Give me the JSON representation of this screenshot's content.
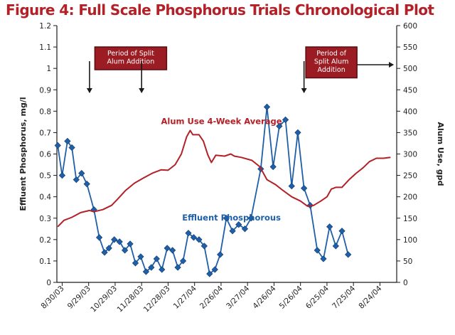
{
  "chart_data": {
    "type": "line",
    "title": "Figure 4: Full Scale Phosphorus Trials Chronological Plot",
    "ylabel_left": "Effluent Phosphorus, mg/l",
    "ylabel_right": "Alum Use, gpd",
    "ylim_left": [
      0,
      1.2
    ],
    "ylim_right": [
      0,
      600
    ],
    "xlim": [
      "2003-08-24",
      "2004-09-12"
    ],
    "x_ticks": [
      "8/30/03",
      "9/29/03",
      "10/29/03",
      "11/28/03",
      "12/28/03",
      "1/27/04",
      "2/26/04",
      "3/27/04",
      "4/26/04",
      "5/26/04",
      "6/25/04",
      "7/25/04",
      "8/24/04"
    ],
    "x_tick_dates": [
      "2003-08-30",
      "2003-09-29",
      "2003-10-29",
      "2003-11-28",
      "2003-12-28",
      "2004-01-27",
      "2004-02-26",
      "2004-03-27",
      "2004-04-26",
      "2004-05-26",
      "2004-06-25",
      "2004-07-25",
      "2004-08-24"
    ],
    "y_ticks_left": [
      "0",
      "0.1",
      "0.2",
      "0.3",
      "0.4",
      "0.5",
      "0.6",
      "0.7",
      "0.8",
      "0.9",
      "1",
      "1.1",
      "1.2"
    ],
    "y_ticks_right": [
      "0",
      "50",
      "100",
      "150",
      "200",
      "250",
      "300",
      "350",
      "400",
      "450",
      "500",
      "550",
      "600"
    ],
    "series": [
      {
        "name": "Effluent Phosphorous",
        "axis": "left",
        "color": "#1f5fa8",
        "marker": "diamond",
        "points": [
          [
            "2003-08-25",
            0.64
          ],
          [
            "2003-08-30",
            0.5
          ],
          [
            "2003-09-05",
            0.66
          ],
          [
            "2003-09-10",
            0.63
          ],
          [
            "2003-09-15",
            0.48
          ],
          [
            "2003-09-21",
            0.51
          ],
          [
            "2003-09-27",
            0.46
          ],
          [
            "2003-10-05",
            0.34
          ],
          [
            "2003-10-11",
            0.21
          ],
          [
            "2003-10-17",
            0.14
          ],
          [
            "2003-10-22",
            0.16
          ],
          [
            "2003-10-28",
            0.2
          ],
          [
            "2003-11-03",
            0.19
          ],
          [
            "2003-11-09",
            0.15
          ],
          [
            "2003-11-15",
            0.18
          ],
          [
            "2003-11-21",
            0.09
          ],
          [
            "2003-11-27",
            0.12
          ],
          [
            "2003-12-03",
            0.05
          ],
          [
            "2003-12-09",
            0.07
          ],
          [
            "2003-12-15",
            0.11
          ],
          [
            "2003-12-21",
            0.06
          ],
          [
            "2003-12-27",
            0.16
          ],
          [
            "2004-01-02",
            0.15
          ],
          [
            "2004-01-08",
            0.07
          ],
          [
            "2004-01-14",
            0.1
          ],
          [
            "2004-01-20",
            0.23
          ],
          [
            "2004-01-26",
            0.21
          ],
          [
            "2004-02-01",
            0.2
          ],
          [
            "2004-02-07",
            0.17
          ],
          [
            "2004-02-13",
            0.04
          ],
          [
            "2004-02-19",
            0.06
          ],
          [
            "2004-02-25",
            0.13
          ],
          [
            "2004-03-03",
            0.3
          ],
          [
            "2004-03-10",
            0.24
          ],
          [
            "2004-03-17",
            0.27
          ],
          [
            "2004-03-24",
            0.25
          ],
          [
            "2004-03-31",
            0.3
          ],
          [
            "2004-04-11",
            0.53
          ],
          [
            "2004-04-18",
            0.82
          ],
          [
            "2004-04-25",
            0.54
          ],
          [
            "2004-05-02",
            0.73
          ],
          [
            "2004-05-09",
            0.76
          ],
          [
            "2004-05-16",
            0.45
          ],
          [
            "2004-05-23",
            0.7
          ],
          [
            "2004-05-30",
            0.44
          ],
          [
            "2004-06-06",
            0.36
          ],
          [
            "2004-06-14",
            0.15
          ],
          [
            "2004-06-21",
            0.11
          ],
          [
            "2004-06-28",
            0.26
          ],
          [
            "2004-07-05",
            0.17
          ],
          [
            "2004-07-12",
            0.24
          ],
          [
            "2004-07-19",
            0.13
          ]
        ]
      },
      {
        "name": "Alum Use 4-Week Average",
        "axis": "right",
        "color": "#b22127",
        "points": [
          [
            "2003-08-25",
            130
          ],
          [
            "2003-09-01",
            145
          ],
          [
            "2003-09-10",
            152
          ],
          [
            "2003-09-20",
            163
          ],
          [
            "2003-09-30",
            168
          ],
          [
            "2003-10-05",
            165
          ],
          [
            "2003-10-15",
            170
          ],
          [
            "2003-10-25",
            180
          ],
          [
            "2003-11-01",
            195
          ],
          [
            "2003-11-10",
            215
          ],
          [
            "2003-11-20",
            232
          ],
          [
            "2003-12-01",
            245
          ],
          [
            "2003-12-10",
            255
          ],
          [
            "2003-12-20",
            263
          ],
          [
            "2003-12-28",
            262
          ],
          [
            "2004-01-05",
            275
          ],
          [
            "2004-01-12",
            300
          ],
          [
            "2004-01-18",
            340
          ],
          [
            "2004-01-22",
            355
          ],
          [
            "2004-01-25",
            345
          ],
          [
            "2004-02-01",
            345
          ],
          [
            "2004-02-06",
            330
          ],
          [
            "2004-02-11",
            298
          ],
          [
            "2004-02-15",
            280
          ],
          [
            "2004-02-20",
            297
          ],
          [
            "2004-03-01",
            295
          ],
          [
            "2004-03-08",
            300
          ],
          [
            "2004-03-12",
            295
          ],
          [
            "2004-03-20",
            292
          ],
          [
            "2004-04-01",
            285
          ],
          [
            "2004-04-10",
            270
          ],
          [
            "2004-04-18",
            240
          ],
          [
            "2004-04-28",
            228
          ],
          [
            "2004-05-06",
            215
          ],
          [
            "2004-05-16",
            200
          ],
          [
            "2004-05-26",
            190
          ],
          [
            "2004-06-03",
            178
          ],
          [
            "2004-06-10",
            180
          ],
          [
            "2004-06-18",
            190
          ],
          [
            "2004-06-25",
            200
          ],
          [
            "2004-06-30",
            218
          ],
          [
            "2004-07-05",
            222
          ],
          [
            "2004-07-12",
            222
          ],
          [
            "2004-07-20",
            240
          ],
          [
            "2004-07-28",
            255
          ],
          [
            "2004-08-05",
            268
          ],
          [
            "2004-08-12",
            282
          ],
          [
            "2004-08-20",
            290
          ],
          [
            "2004-08-28",
            290
          ],
          [
            "2004-09-05",
            292
          ]
        ]
      }
    ],
    "series_labels": [
      {
        "text": "Alum Use 4-Week Average",
        "color": "#b22127",
        "anchor_date": "2003-12-20",
        "anchor_right": 370
      },
      {
        "text": "Effluent Phosphorous",
        "color": "#1f5fa8",
        "anchor_date": "2004-01-13",
        "anchor_left": 0.29
      }
    ],
    "annotations": [
      {
        "lines": [
          "Period of Split",
          "Alum Addition"
        ],
        "box_date": "2003-10-06",
        "arrows": [
          {
            "from_date": "2003-09-30",
            "to_date": "2003-09-30",
            "direction": "down"
          },
          {
            "from_date": "2003-11-28",
            "to_date": "2003-11-28",
            "direction": "down"
          }
        ]
      },
      {
        "lines": [
          "Period of",
          "Split Alum",
          "Addition"
        ],
        "box_date": "2004-06-01",
        "arrows": [
          {
            "from_date": "2004-05-30",
            "to_date": "2004-05-30",
            "direction": "down"
          },
          {
            "from_date": "2004-08-28",
            "to_date": "2004-09-08",
            "direction": "right"
          }
        ]
      }
    ],
    "grid": false,
    "legend": "none"
  }
}
